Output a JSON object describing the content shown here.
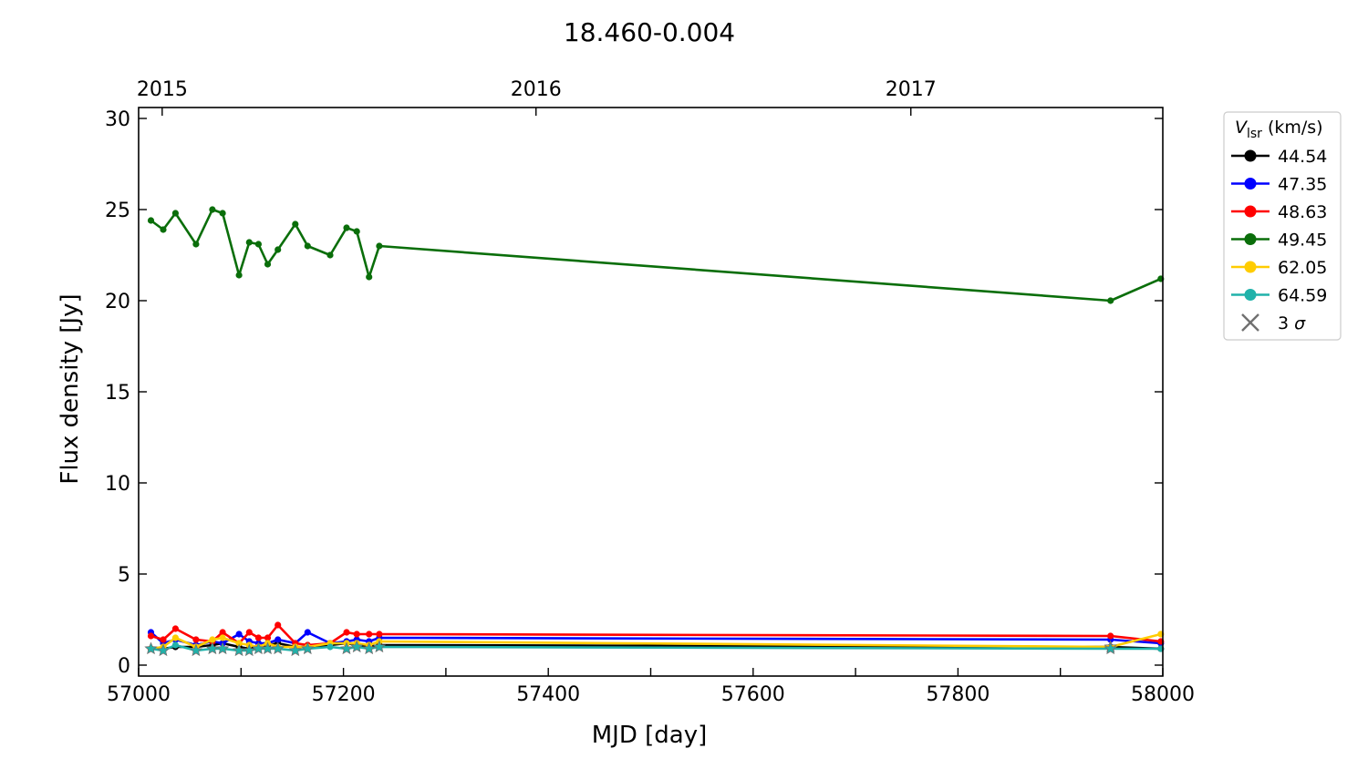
{
  "chart_data": {
    "type": "line",
    "title": "18.460-0.004",
    "xlabel": "MJD [day]",
    "ylabel": "Flux density [Jy]",
    "xlim": [
      57000,
      58000
    ],
    "ylim": [
      -0.6,
      30.6
    ],
    "xticks": [
      57000,
      57200,
      57400,
      57600,
      57800,
      58000
    ],
    "xticks_minor": [
      57100,
      57300,
      57500,
      57700,
      57900
    ],
    "yticks": [
      0,
      5,
      10,
      15,
      20,
      25,
      30
    ],
    "top_axis_ticks": [
      {
        "label": "2015",
        "mjd": 57023
      },
      {
        "label": "2016",
        "mjd": 57388
      },
      {
        "label": "2017",
        "mjd": 57754
      }
    ],
    "grid": false,
    "legend": {
      "placement": "outside-right",
      "title_symbol": "V",
      "title_subscript": "lsr",
      "title_unit": "(km/s)",
      "sigma_label": "3 σ",
      "sigma_color": "#707070"
    },
    "x": [
      57012,
      57024,
      57036,
      57056,
      57072,
      57082,
      57098,
      57108,
      57117,
      57126,
      57136,
      57153,
      57165,
      57187,
      57203,
      57213,
      57225,
      57235,
      57949,
      57998
    ],
    "series": [
      {
        "name": "44.54",
        "color": "#000000",
        "values": [
          0.9,
          0.9,
          1.0,
          1.0,
          1.1,
          1.2,
          1.0,
          0.9,
          1.0,
          1.1,
          1.2,
          1.0,
          1.0,
          1.1,
          1.2,
          1.1,
          1.0,
          1.1,
          1.0,
          0.9
        ],
        "sigma_mask": [
          0,
          0,
          0,
          0,
          0,
          0,
          0,
          0,
          0,
          0,
          0,
          0,
          0,
          0,
          0,
          0,
          0,
          0,
          0,
          0
        ]
      },
      {
        "name": "47.35",
        "color": "#0000ff",
        "values": [
          1.8,
          1.2,
          1.4,
          1.1,
          1.3,
          1.2,
          1.7,
          1.3,
          1.2,
          1.2,
          1.4,
          1.2,
          1.8,
          1.2,
          1.3,
          1.4,
          1.3,
          1.5,
          1.4,
          1.2
        ],
        "sigma_mask": [
          0,
          0,
          0,
          0,
          0,
          0,
          0,
          0,
          0,
          0,
          0,
          0,
          0,
          0,
          0,
          0,
          0,
          0,
          0,
          0
        ]
      },
      {
        "name": "48.63",
        "color": "#ff0000",
        "values": [
          1.6,
          1.4,
          2.0,
          1.4,
          1.3,
          1.8,
          1.2,
          1.8,
          1.5,
          1.5,
          2.2,
          1.2,
          1.1,
          1.2,
          1.8,
          1.7,
          1.7,
          1.7,
          1.6,
          1.3
        ],
        "sigma_mask": [
          0,
          0,
          0,
          0,
          0,
          0,
          0,
          0,
          0,
          0,
          0,
          0,
          0,
          0,
          0,
          0,
          0,
          0,
          0,
          0
        ]
      },
      {
        "name": "49.45",
        "color": "#0a6e0a",
        "values": [
          24.4,
          23.9,
          24.8,
          23.1,
          25.0,
          24.8,
          21.4,
          23.2,
          23.1,
          22.0,
          22.8,
          24.2,
          23.0,
          22.5,
          24.0,
          23.8,
          21.3,
          23.0,
          20.0,
          21.2
        ],
        "sigma_mask": [
          0,
          0,
          0,
          0,
          0,
          0,
          0,
          0,
          0,
          0,
          0,
          0,
          0,
          0,
          0,
          0,
          0,
          0,
          0,
          0
        ]
      },
      {
        "name": "62.05",
        "color": "#ffcc00",
        "values": [
          0.9,
          1.0,
          1.5,
          1.0,
          1.4,
          1.5,
          1.2,
          1.1,
          1.0,
          1.2,
          1.0,
          1.0,
          1.0,
          1.2,
          1.2,
          1.2,
          1.1,
          1.3,
          1.0,
          1.7
        ],
        "sigma_mask": [
          0,
          0,
          0,
          0,
          0,
          0,
          0,
          0,
          0,
          0,
          0,
          0,
          0,
          0,
          0,
          0,
          0,
          0,
          1,
          0
        ]
      },
      {
        "name": "64.59",
        "color": "#20b2aa",
        "values": [
          0.9,
          0.8,
          1.1,
          0.8,
          0.9,
          0.9,
          0.8,
          0.8,
          0.9,
          0.9,
          0.9,
          0.8,
          0.9,
          1.0,
          0.9,
          1.0,
          0.9,
          1.0,
          0.9,
          0.9
        ],
        "sigma_mask": [
          1,
          1,
          0,
          1,
          1,
          1,
          1,
          1,
          1,
          1,
          1,
          1,
          1,
          0,
          1,
          1,
          1,
          1,
          1,
          0
        ]
      }
    ]
  }
}
